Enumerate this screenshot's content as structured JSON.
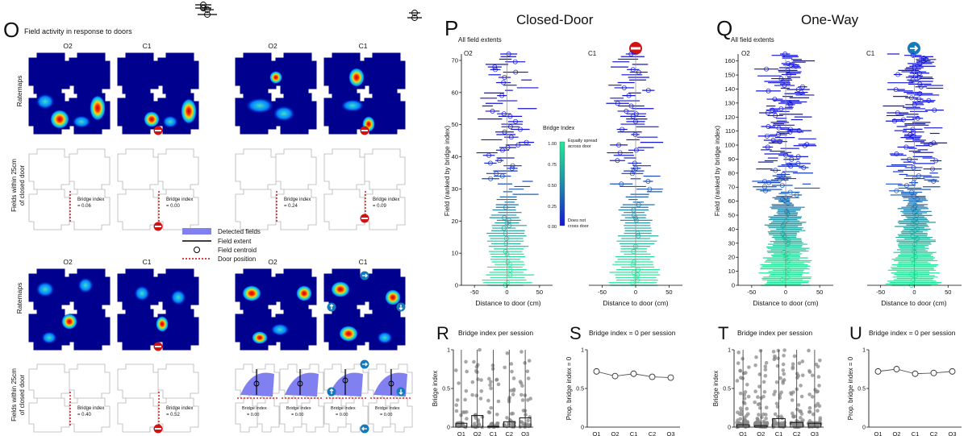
{
  "panel_letters": {
    "O": "O",
    "P": "P",
    "Q": "Q",
    "R": "R",
    "S": "S",
    "T": "T",
    "U": "U"
  },
  "panel_O": {
    "title": "Field activity in response to doors",
    "row_labels": {
      "ratemaps": "Ratemaps",
      "fields_line1": "Fields within 25cm",
      "fields_line2": "of closed door"
    },
    "col_labels": {
      "o2": "O2",
      "c1": "C1"
    },
    "bridge_prefix": "Bridge index",
    "bridge_values": [
      "= 0.06",
      "= 0.00",
      "= 0.24",
      "= 0.09",
      "= 0.40",
      "= 0.52",
      "= 0.00",
      "= 0.00",
      "= 0.00",
      "= 0.00"
    ],
    "legend": [
      "Detected fields",
      "Field extent",
      "Field centroid",
      "Door position"
    ]
  },
  "panel_P": {
    "heading": "Closed-Door",
    "subtitle": "All field extents",
    "left_label": "O2",
    "right_label": "C1"
  },
  "panel_Q": {
    "heading": "One-Way",
    "subtitle": "All field extents",
    "left_label": "O2",
    "right_label": "C1"
  },
  "colorbar": {
    "title": "Bridge Index",
    "top_line1": "Equally spread",
    "top_line2": "across door",
    "bottom_line1": "Does not",
    "bottom_line2": "cross door",
    "ticks": [
      "1.00",
      "0.75",
      "0.50",
      "0.25",
      "0.00"
    ],
    "colors": {
      "low": "#1515d6",
      "mid": "#1d8fa8",
      "high": "#22e89a"
    }
  },
  "chart_data": [
    {
      "id": "P",
      "type": "scatter",
      "title": "Closed-Door",
      "subtitle": "All field extents",
      "xlabel": "Distance to door (cm)",
      "ylabel": "Field (ranked by bridge index)",
      "ylim": [
        0,
        72
      ],
      "yticks": [
        0,
        10,
        20,
        30,
        40,
        50,
        60,
        70
      ],
      "xlim": [
        -70,
        70
      ],
      "xticks": [
        -50,
        0,
        50
      ],
      "sessions": [
        {
          "name": "O2"
        },
        {
          "name": "C1"
        }
      ]
    },
    {
      "id": "Q",
      "type": "scatter",
      "title": "One-Way",
      "subtitle": "All field extents",
      "xlabel": "Distance to door (cm)",
      "ylabel": "Field (ranked by bridge index)",
      "ylim": [
        0,
        165
      ],
      "yticks": [
        0,
        10,
        20,
        30,
        40,
        50,
        60,
        70,
        80,
        90,
        100,
        110,
        120,
        130,
        140,
        150,
        160
      ],
      "xlim": [
        -70,
        70
      ],
      "xticks": [
        -50,
        0,
        50
      ],
      "sessions": [
        {
          "name": "O2"
        },
        {
          "name": "C1"
        }
      ]
    },
    {
      "id": "R",
      "type": "bar",
      "title": "Bridge index per session",
      "ylabel": "Bridge index",
      "categories": [
        "O1",
        "O2",
        "C1",
        "C2",
        "O3"
      ],
      "medians": [
        0.05,
        0.15,
        0.01,
        0.07,
        0.12
      ],
      "ylim": [
        0,
        1
      ],
      "yticks": [
        0,
        0.5,
        1
      ]
    },
    {
      "id": "S",
      "type": "line",
      "title": "Bridge index = 0 per session",
      "ylabel": "Prop. bridge index = 0",
      "categories": [
        "O1",
        "O2",
        "C1",
        "C2",
        "O3"
      ],
      "values": [
        0.72,
        0.66,
        0.69,
        0.65,
        0.64
      ],
      "ylim": [
        0,
        1
      ],
      "yticks": [
        0,
        0.5,
        1
      ]
    },
    {
      "id": "T",
      "type": "bar",
      "title": "Bridge index per session",
      "ylabel": "Bridge index",
      "categories": [
        "O1",
        "O2",
        "C1",
        "C2",
        "O3"
      ],
      "medians": [
        0.03,
        0.02,
        0.11,
        0.06,
        0.05
      ],
      "ylim": [
        0,
        1
      ],
      "yticks": [
        0,
        0.5,
        1
      ]
    },
    {
      "id": "U",
      "type": "line",
      "title": "Bridge index = 0 per session",
      "ylabel": "Prop. bridge index = 0",
      "categories": [
        "O1",
        "O2",
        "C1",
        "C2",
        "O3"
      ],
      "values": [
        0.72,
        0.75,
        0.69,
        0.7,
        0.72
      ],
      "ylim": [
        0,
        1
      ],
      "yticks": [
        0,
        0.5,
        1
      ]
    }
  ]
}
